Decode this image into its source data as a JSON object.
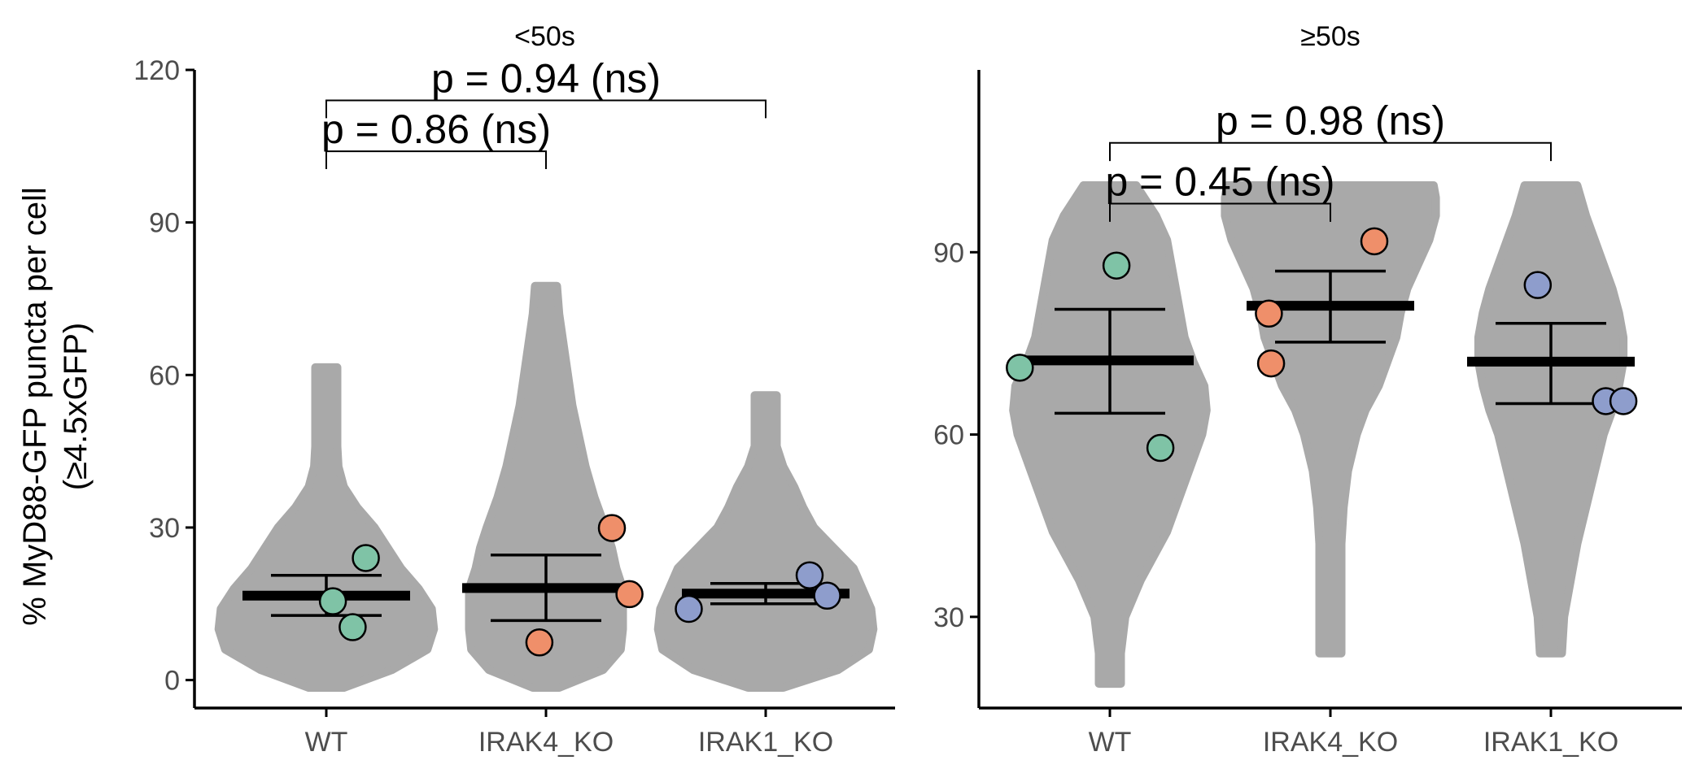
{
  "ylabel_line1": "% MyD88-GFP puncta per cell",
  "ylabel_line2": "(≥4.5xGFP)",
  "colors": {
    "violin": "#a9a9a9",
    "WT": "#7fc3a6",
    "IRAK4_KO": "#ef8f6a",
    "IRAK1_KO": "#8e9dcc",
    "axis": "#000000",
    "tick_text": "#4d4d4d"
  },
  "chart_data": [
    {
      "type": "violin",
      "facet": "<50s",
      "categories": [
        "WT",
        "IRAK4_KO",
        "IRAK1_KO"
      ],
      "ylim": [
        -5.5,
        120
      ],
      "yticks": [
        0,
        30,
        60,
        90,
        120
      ],
      "ytick_labels": [
        "0",
        "30",
        "60",
        "90",
        "120"
      ],
      "grid": false,
      "violins": [
        {
          "category": "WT",
          "profile": [
            [
              -1.5,
              0.08
            ],
            [
              2,
              0.3
            ],
            [
              6,
              0.46
            ],
            [
              10,
              0.49
            ],
            [
              14,
              0.48
            ],
            [
              18,
              0.42
            ],
            [
              22,
              0.34
            ],
            [
              26,
              0.28
            ],
            [
              30,
              0.22
            ],
            [
              34,
              0.14
            ],
            [
              38,
              0.08
            ],
            [
              42,
              0.055
            ],
            [
              46,
              0.05
            ],
            [
              52,
              0.05
            ],
            [
              58,
              0.05
            ],
            [
              61.5,
              0.05
            ]
          ]
        },
        {
          "category": "IRAK4_KO",
          "profile": [
            [
              -1.5,
              0.06
            ],
            [
              2,
              0.26
            ],
            [
              6,
              0.34
            ],
            [
              10,
              0.35
            ],
            [
              14,
              0.35
            ],
            [
              18,
              0.35
            ],
            [
              22,
              0.32
            ],
            [
              26,
              0.3
            ],
            [
              30,
              0.27
            ],
            [
              36,
              0.22
            ],
            [
              42,
              0.18
            ],
            [
              48,
              0.15
            ],
            [
              54,
              0.12
            ],
            [
              60,
              0.1
            ],
            [
              66,
              0.08
            ],
            [
              72,
              0.06
            ],
            [
              77.5,
              0.05
            ]
          ]
        },
        {
          "category": "IRAK1_KO",
          "profile": [
            [
              -1.5,
              0.08
            ],
            [
              2,
              0.33
            ],
            [
              6,
              0.47
            ],
            [
              10,
              0.49
            ],
            [
              14,
              0.48
            ],
            [
              18,
              0.44
            ],
            [
              22,
              0.4
            ],
            [
              26,
              0.31
            ],
            [
              30,
              0.22
            ],
            [
              34,
              0.17
            ],
            [
              38,
              0.13
            ],
            [
              42,
              0.08
            ],
            [
              46,
              0.05
            ],
            [
              52,
              0.05
            ],
            [
              56,
              0.05
            ]
          ]
        }
      ],
      "summaries": [
        {
          "category": "WT",
          "mean": 16.6,
          "lower": 12.7,
          "upper": 20.6
        },
        {
          "category": "IRAK4_KO",
          "mean": 18.1,
          "lower": 11.7,
          "upper": 24.6
        },
        {
          "category": "IRAK1_KO",
          "mean": 17.0,
          "lower": 15.0,
          "upper": 19.0
        }
      ],
      "points": [
        {
          "category": "WT",
          "dx": 0.18,
          "y": 24.0
        },
        {
          "category": "WT",
          "dx": 0.03,
          "y": 15.5
        },
        {
          "category": "WT",
          "dx": 0.12,
          "y": 10.4
        },
        {
          "category": "IRAK4_KO",
          "dx": 0.3,
          "y": 29.9
        },
        {
          "category": "IRAK4_KO",
          "dx": 0.38,
          "y": 16.9
        },
        {
          "category": "IRAK4_KO",
          "dx": -0.03,
          "y": 7.4
        },
        {
          "category": "IRAK1_KO",
          "dx": 0.2,
          "y": 20.6
        },
        {
          "category": "IRAK1_KO",
          "dx": 0.28,
          "y": 16.6
        },
        {
          "category": "IRAK1_KO",
          "dx": -0.35,
          "y": 14.0
        }
      ],
      "brackets": [
        {
          "from": "WT",
          "to": "IRAK1_KO",
          "y": 114,
          "tip": 3.5,
          "label": "p = 0.94 (ns)"
        },
        {
          "from": "WT",
          "to": "IRAK4_KO",
          "y": 104,
          "tip": 3.5,
          "label": "p = 0.86 (ns)"
        }
      ]
    },
    {
      "type": "violin",
      "facet": "≥50s",
      "categories": [
        "WT",
        "IRAK4_KO",
        "IRAK1_KO"
      ],
      "ylim": [
        15,
        120
      ],
      "yticks": [
        30,
        60,
        90
      ],
      "ytick_labels": [
        "30",
        "60",
        "90"
      ],
      "grid": false,
      "violins": [
        {
          "category": "WT",
          "profile": [
            [
              19,
              0.05
            ],
            [
              24,
              0.05
            ],
            [
              30,
              0.07
            ],
            [
              36,
              0.14
            ],
            [
              40,
              0.2
            ],
            [
              44,
              0.26
            ],
            [
              48,
              0.3
            ],
            [
              52,
              0.34
            ],
            [
              56,
              0.38
            ],
            [
              60,
              0.42
            ],
            [
              64,
              0.44
            ],
            [
              68,
              0.43
            ],
            [
              72,
              0.38
            ],
            [
              76,
              0.34
            ],
            [
              80,
              0.32
            ],
            [
              84,
              0.3
            ],
            [
              88,
              0.28
            ],
            [
              92,
              0.26
            ],
            [
              96,
              0.21
            ],
            [
              101,
              0.12
            ]
          ]
        },
        {
          "category": "IRAK4_KO",
          "profile": [
            [
              24,
              0.05
            ],
            [
              30,
              0.05
            ],
            [
              36,
              0.05
            ],
            [
              42,
              0.05
            ],
            [
              48,
              0.06
            ],
            [
              54,
              0.08
            ],
            [
              60,
              0.12
            ],
            [
              64,
              0.16
            ],
            [
              68,
              0.22
            ],
            [
              72,
              0.26
            ],
            [
              76,
              0.3
            ],
            [
              80,
              0.32
            ],
            [
              84,
              0.35
            ],
            [
              88,
              0.4
            ],
            [
              92,
              0.45
            ],
            [
              96,
              0.48
            ],
            [
              99,
              0.48
            ],
            [
              101,
              0.47
            ]
          ]
        },
        {
          "category": "IRAK1_KO",
          "profile": [
            [
              24,
              0.05
            ],
            [
              30,
              0.06
            ],
            [
              36,
              0.09
            ],
            [
              42,
              0.12
            ],
            [
              48,
              0.16
            ],
            [
              54,
              0.2
            ],
            [
              60,
              0.24
            ],
            [
              64,
              0.28
            ],
            [
              68,
              0.31
            ],
            [
              72,
              0.33
            ],
            [
              76,
              0.33
            ],
            [
              80,
              0.31
            ],
            [
              84,
              0.28
            ],
            [
              88,
              0.24
            ],
            [
              92,
              0.2
            ],
            [
              96,
              0.16
            ],
            [
              101,
              0.12
            ]
          ]
        }
      ],
      "summaries": [
        {
          "category": "WT",
          "mean": 72.2,
          "lower": 63.5,
          "upper": 80.6
        },
        {
          "category": "IRAK4_KO",
          "mean": 81.2,
          "lower": 75.2,
          "upper": 86.9
        },
        {
          "category": "IRAK1_KO",
          "mean": 72.0,
          "lower": 65.1,
          "upper": 78.3
        }
      ],
      "points": [
        {
          "category": "WT",
          "dx": 0.03,
          "y": 87.8
        },
        {
          "category": "WT",
          "dx": -0.41,
          "y": 71.0
        },
        {
          "category": "WT",
          "dx": 0.23,
          "y": 57.8
        },
        {
          "category": "IRAK4_KO",
          "dx": 0.2,
          "y": 91.8
        },
        {
          "category": "IRAK4_KO",
          "dx": -0.28,
          "y": 79.9
        },
        {
          "category": "IRAK4_KO",
          "dx": -0.27,
          "y": 71.7
        },
        {
          "category": "IRAK1_KO",
          "dx": -0.06,
          "y": 84.6
        },
        {
          "category": "IRAK1_KO",
          "dx": 0.25,
          "y": 65.5
        },
        {
          "category": "IRAK1_KO",
          "dx": 0.33,
          "y": 65.5
        }
      ],
      "brackets": [
        {
          "from": "WT",
          "to": "IRAK1_KO",
          "y": 108,
          "tip": 3,
          "label": "p = 0.98 (ns)"
        },
        {
          "from": "WT",
          "to": "IRAK4_KO",
          "y": 98,
          "tip": 3,
          "label": "p = 0.45 (ns)"
        }
      ]
    }
  ]
}
